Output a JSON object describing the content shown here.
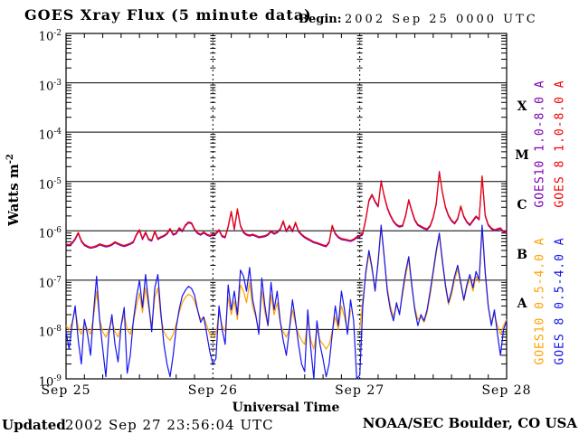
{
  "title": "GOES Xray Flux (5 minute data)",
  "begin": {
    "label": "Begin:",
    "value": "2002 Sep 25 0000 UTC"
  },
  "footer": {
    "updated_label": "Updated",
    "updated_value": "2002 Sep 27 23:56:04 UTC",
    "credit": "NOAA/SEC Boulder, CO USA"
  },
  "colors": {
    "red": "#f20000",
    "purple": "#7d00b4",
    "orange": "#ffa200",
    "blue": "#1414f0",
    "axis": "#000000",
    "background": "#ffffff"
  },
  "chart_data": {
    "type": "line",
    "title": "GOES Xray Flux (5 minute data)",
    "xlabel": "Universal Time",
    "x_unit": "hours since 2002 Sep 25 0000 UTC",
    "x_range": [
      0,
      72
    ],
    "step_hours": 0.5,
    "x_day_labels": [
      "Sep 25",
      "Sep 26",
      "Sep 27",
      "Sep 28"
    ],
    "x_day_tick_hours": [
      0,
      24,
      48,
      72
    ],
    "y_scale": "log",
    "ylim_watts": [
      1e-09,
      0.01
    ],
    "y_tick_exponents": [
      -2,
      -3,
      -4,
      -5,
      -6,
      -7,
      -8,
      -9
    ],
    "y_axis_title": {
      "base": "Watts m",
      "exp": "-2"
    },
    "values_unit": "1e-9 W m^-2 (nanowatts per square meter)",
    "grid": "horizontal decade lines; dotted vertical lines at day boundaries",
    "flux_classes": [
      {
        "label": "X",
        "log_center": -3.5
      },
      {
        "label": "M",
        "log_center": -4.5
      },
      {
        "label": "C",
        "log_center": -5.5
      },
      {
        "label": "B",
        "log_center": -6.5
      },
      {
        "label": "A",
        "log_center": -7.5
      }
    ],
    "legend": [
      {
        "text": "GOES10 1.0-8.0 A",
        "color": "purple"
      },
      {
        "text": "GOES 8 1.0-8.0 A",
        "color": "red"
      },
      {
        "text": "GOES10 0.5-4.0 A",
        "color": "orange"
      },
      {
        "text": "GOES 8 0.5-4.0 A",
        "color": "blue"
      }
    ],
    "series": [
      {
        "name": "GOES10 1.0-8.0 A",
        "color": "purple",
        "values": [
          522,
          494,
          551,
          665,
          884,
          608,
          504,
          466,
          442,
          456,
          475,
          518,
          494,
          470,
          480,
          513,
          570,
          532,
          499,
          480,
          504,
          532,
          580,
          817,
          1007,
          665,
          903,
          656,
          618,
          950,
          665,
          722,
          770,
          855,
          1064,
          817,
          865,
          1102,
          960,
          1254,
          1444,
          1387,
          1045,
          874,
          817,
          903,
          817,
          770,
          817,
          855,
          1007,
          760,
          722,
          1188,
          2375,
          1045,
          2660,
          1235,
          903,
          817,
          779,
          817,
          770,
          722,
          741,
          760,
          817,
          950,
          855,
          912,
          1045,
          1520,
          950,
          1235,
          950,
          1425,
          950,
          817,
          722,
          665,
          618,
          570,
          551,
          522,
          494,
          475,
          570,
          1235,
          855,
          722,
          665,
          646,
          627,
          608,
          646,
          722,
          760,
          855,
          1710,
          3990,
          5225,
          3800,
          3040,
          10400,
          4940,
          2850,
          1995,
          1520,
          1283,
          1188,
          1235,
          1995,
          4085,
          2470,
          1615,
          1283,
          1188,
          1093,
          1045,
          1235,
          1805,
          3420,
          16000,
          5890,
          2945,
          1995,
          1568,
          1378,
          1710,
          3040,
          1900,
          1473,
          1283,
          1568,
          1900,
          1663,
          12400,
          1995,
          1283,
          1093,
          998,
          1045,
          1093,
          931,
          884
        ]
      },
      {
        "name": "GOES 8 1.0-8.0 A",
        "color": "red",
        "values": [
          550,
          520,
          580,
          700,
          930,
          640,
          530,
          490,
          465,
          480,
          500,
          545,
          520,
          495,
          505,
          540,
          600,
          560,
          525,
          505,
          530,
          560,
          610,
          860,
          1060,
          700,
          950,
          690,
          650,
          1000,
          700,
          760,
          810,
          900,
          1120,
          860,
          910,
          1160,
          1010,
          1320,
          1520,
          1460,
          1100,
          920,
          860,
          950,
          860,
          810,
          860,
          900,
          1060,
          800,
          760,
          1250,
          2500,
          1100,
          2800,
          1300,
          950,
          860,
          820,
          860,
          810,
          760,
          780,
          800,
          860,
          1000,
          900,
          960,
          1100,
          1600,
          1000,
          1300,
          1000,
          1500,
          1000,
          860,
          760,
          700,
          650,
          600,
          580,
          550,
          520,
          500,
          600,
          1300,
          900,
          760,
          700,
          680,
          660,
          640,
          680,
          760,
          800,
          900,
          1800,
          4200,
          5500,
          4000,
          3200,
          9800,
          5200,
          3000,
          2100,
          1600,
          1350,
          1250,
          1300,
          2100,
          4300,
          2600,
          1700,
          1350,
          1250,
          1150,
          1100,
          1300,
          1900,
          3600,
          15000,
          6200,
          3100,
          2100,
          1650,
          1450,
          1800,
          3200,
          2000,
          1550,
          1350,
          1650,
          2000,
          1750,
          13000,
          2100,
          1350,
          1150,
          1050,
          1100,
          1150,
          980,
          930
        ]
      },
      {
        "name": "GOES10 0.5-4.0 A",
        "color": "orange",
        "values": [
          12,
          10,
          14,
          25,
          11,
          8,
          14,
          10,
          8,
          18,
          60,
          16,
          9,
          7,
          10,
          15,
          9,
          7,
          12,
          20,
          10,
          8,
          14,
          30,
          55,
          22,
          70,
          28,
          12,
          45,
          70,
          18,
          9,
          7,
          6,
          8,
          13,
          22,
          35,
          45,
          52,
          48,
          38,
          24,
          16,
          18,
          12,
          8,
          7,
          8,
          22,
          12,
          9,
          45,
          20,
          38,
          16,
          80,
          60,
          35,
          90,
          28,
          18,
          10,
          60,
          22,
          12,
          50,
          20,
          35,
          14,
          9,
          7,
          10,
          25,
          13,
          8,
          6,
          5,
          15,
          6,
          4,
          10,
          6,
          5,
          4,
          5,
          9,
          18,
          10,
          30,
          18,
          9,
          25,
          null,
          null,
          10,
          40,
          130,
          350,
          160,
          70,
          220,
          1200,
          280,
          70,
          30,
          18,
          30,
          22,
          50,
          120,
          260,
          70,
          28,
          16,
          18,
          14,
          22,
          50,
          130,
          350,
          800,
          220,
          70,
          32,
          50,
          100,
          170,
          80,
          38,
          70,
          110,
          60,
          120,
          90,
          1100,
          130,
          28,
          14,
          20,
          12,
          8,
          12,
          16
        ]
      },
      {
        "name": "GOES 8 0.5-4.0 A",
        "color": "blue",
        "values": [
          9,
          4,
          13,
          30,
          6,
          2,
          16,
          8,
          3,
          22,
          120,
          15,
          4,
          1.1,
          8,
          20,
          5,
          2.2,
          12,
          28,
          1.3,
          3,
          15,
          45,
          100,
          28,
          130,
          35,
          9,
          70,
          130,
          22,
          5,
          2,
          1.1,
          3,
          11,
          26,
          48,
          62,
          75,
          68,
          50,
          25,
          14,
          18,
          8,
          3.5,
          2,
          2.6,
          30,
          10,
          5,
          80,
          25,
          60,
          20,
          160,
          120,
          60,
          180,
          40,
          20,
          8,
          110,
          30,
          12,
          90,
          25,
          60,
          15,
          6,
          3,
          10,
          40,
          15,
          5,
          2,
          1.4,
          25,
          4,
          1.0,
          15,
          5,
          2.5,
          1.1,
          2,
          8,
          30,
          12,
          60,
          25,
          8,
          40,
          15,
          1.0,
          1.2,
          30,
          150,
          400,
          180,
          60,
          250,
          1300,
          300,
          60,
          25,
          15,
          35,
          20,
          60,
          150,
          300,
          80,
          25,
          12,
          20,
          15,
          25,
          60,
          150,
          400,
          900,
          250,
          80,
          35,
          60,
          120,
          200,
          90,
          40,
          80,
          130,
          70,
          150,
          100,
          1300,
          150,
          30,
          12,
          25,
          8,
          3,
          10,
          15
        ]
      }
    ]
  }
}
